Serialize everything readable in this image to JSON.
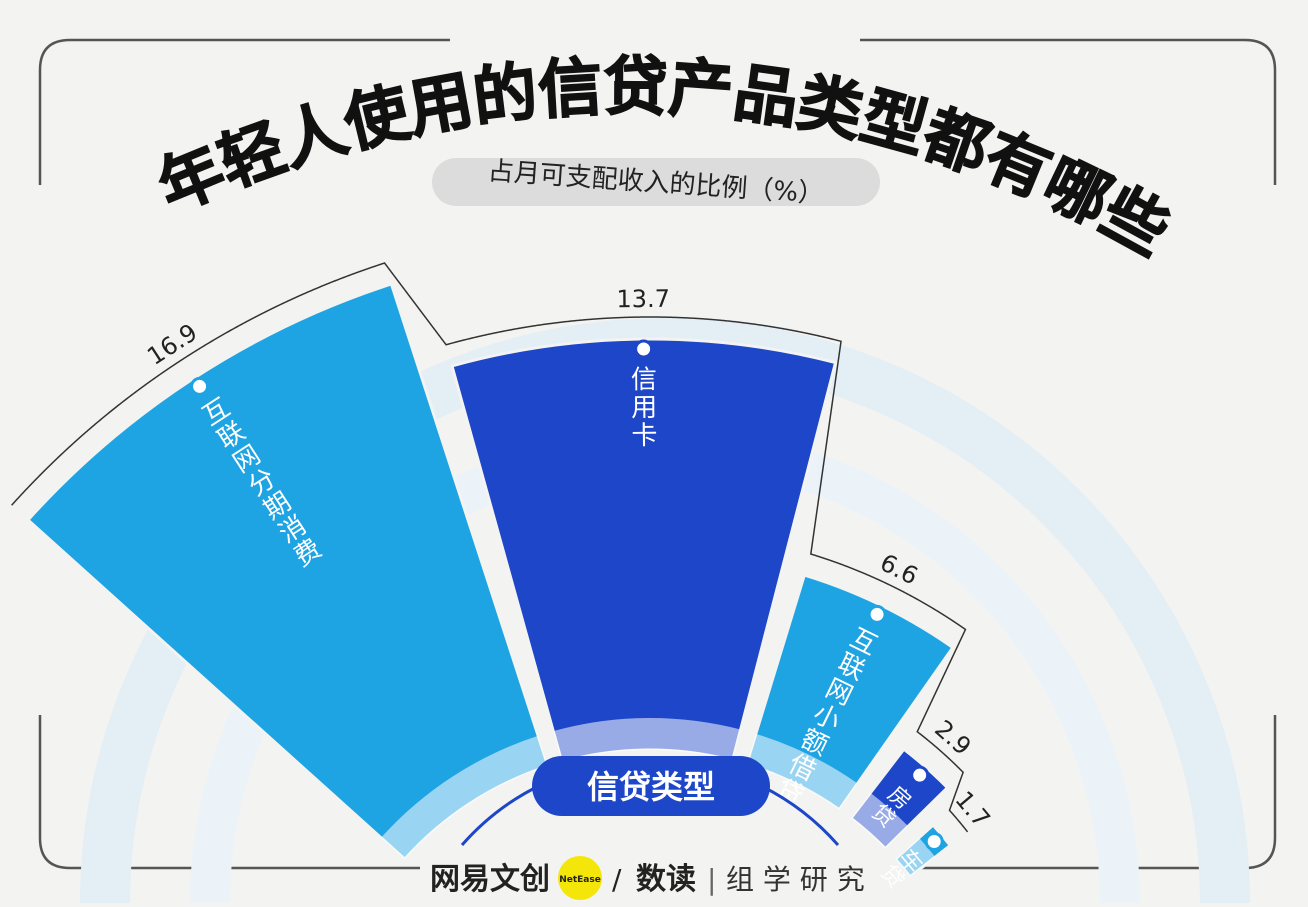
{
  "title": "年轻人使用的信贷产品类型都有哪些",
  "subtitle": "占月可支配收入的比例（%）",
  "center_label": "信贷类型",
  "footer": {
    "brand": "网易文创",
    "badge": "NetEase",
    "slash": "/",
    "section": "数读",
    "divider": "|",
    "org": "组 学 研 究"
  },
  "colors": {
    "light_blue": "#1ea3e3",
    "dark_blue": "#1d46c8",
    "label_pill": "#dcdcdc",
    "badge_yellow": "#f5e60a"
  },
  "chart_data": {
    "type": "bar",
    "layout": "radial-fan",
    "categories": [
      "互联网分期消费",
      "信用卡",
      "互联网小额借贷",
      "房贷",
      "车贷"
    ],
    "values": [
      16.9,
      13.7,
      6.6,
      2.9,
      1.7
    ],
    "value_labels": [
      "16.9",
      "13.7",
      "6.6",
      "2.9",
      "1.7"
    ],
    "ylabel": "占月可支配收入的比例（%）",
    "xlabel": "信贷类型",
    "bar_colors": [
      "#1ea3e3",
      "#1d46c8",
      "#1ea3e3",
      "#1d46c8",
      "#1ea3e3"
    ]
  }
}
